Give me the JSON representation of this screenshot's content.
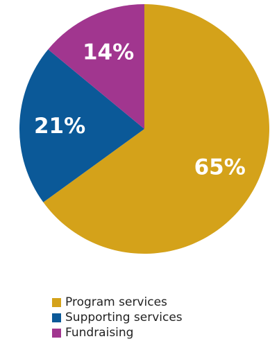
{
  "chart_data": {
    "type": "pie",
    "title": "",
    "legend_position": "bottom-left",
    "slices": [
      {
        "label": "Program services",
        "value": 65,
        "display": "65%",
        "color": "#D4A21A"
      },
      {
        "label": "Supporting services",
        "value": 21,
        "display": "21%",
        "color": "#0B5998"
      },
      {
        "label": "Fundraising",
        "value": 14,
        "display": "14%",
        "color": "#A1368F"
      }
    ]
  }
}
